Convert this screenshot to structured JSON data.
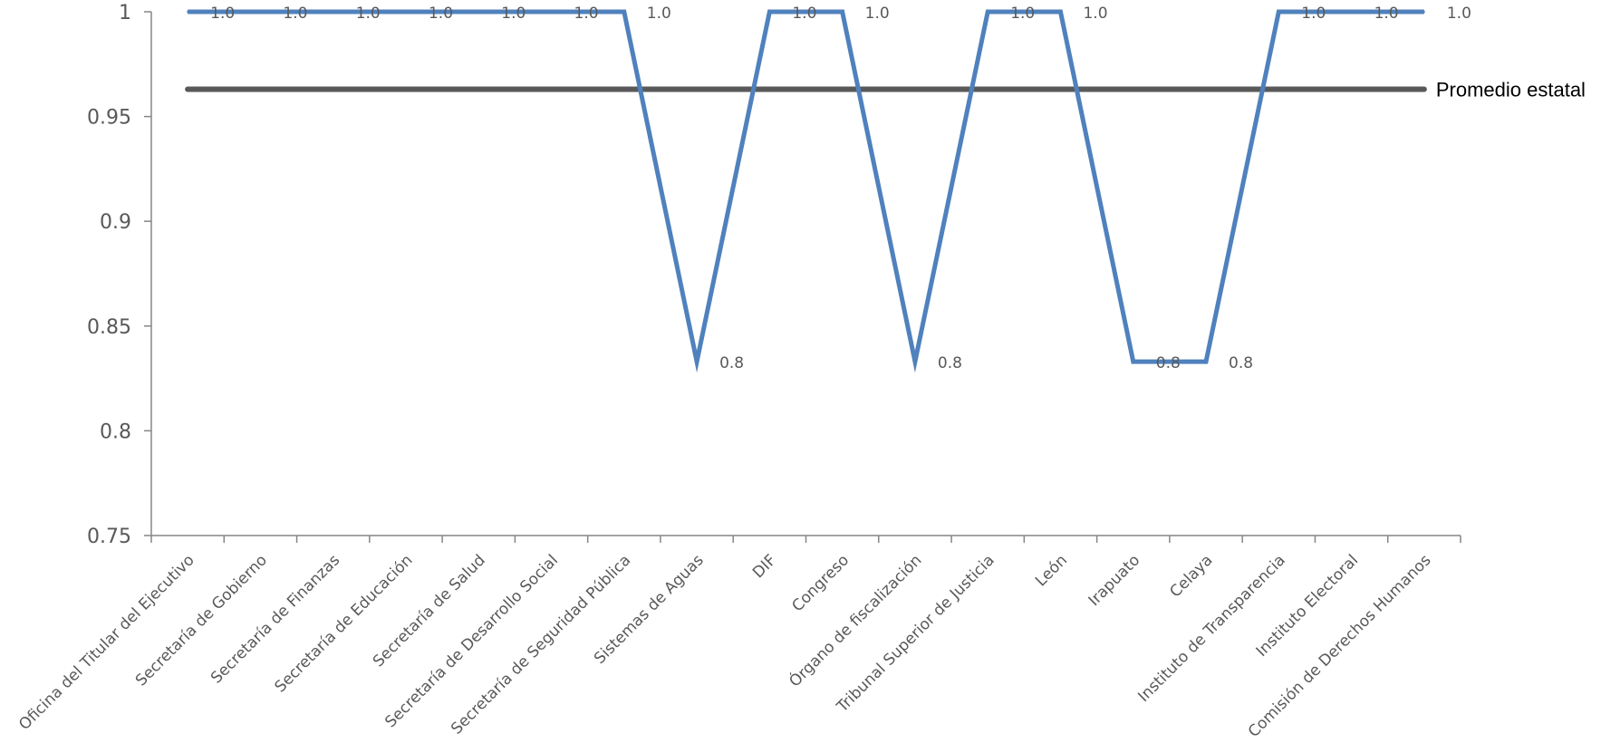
{
  "chart_data": {
    "type": "line",
    "categories": [
      "Oficina del Titular del Ejecutivo",
      "Secretaría de Gobierno",
      "Secretaría de Finanzas",
      "Secretaría de Educación",
      "Secretaría de Salud",
      "Secretaría de Desarrollo Social",
      "Secretaría de Seguridad Pública",
      "Sistemas de Aguas",
      "DIF",
      "Congreso",
      "Órgano de fiscalización",
      "Tribunal Superior de Justicia",
      "León",
      "Irapuato",
      "Celaya",
      "Instituto de Transparencia",
      "Instituto Electoral",
      "Comisión de Derechos Humanos"
    ],
    "series": [
      {
        "values": [
          1,
          1,
          1,
          1,
          1,
          1,
          1,
          0.833,
          1,
          1,
          0.833,
          1,
          1,
          0.833,
          0.833,
          1,
          1,
          1
        ],
        "data_labels": [
          "1.0",
          "1.0",
          "1.0",
          "1.0",
          "1.0",
          "1.0",
          "1.0",
          "0.8",
          "1.0",
          "1.0",
          "0.8",
          "1.0",
          "1.0",
          "0.8",
          "0.8",
          "1.0",
          "1.0",
          "1.0"
        ],
        "color": "#4F81BD"
      }
    ],
    "reference_line": {
      "name": "Promedio estatal",
      "value": 0.963,
      "color": "#595959"
    },
    "ylim": [
      0.75,
      1
    ],
    "yticks": [
      0.75,
      0.8,
      0.85,
      0.9,
      0.95,
      1
    ],
    "ytick_labels": [
      "0.75",
      "0.8",
      "0.85",
      "0.9",
      "0.95",
      "1"
    ],
    "grid": false,
    "legend": "none",
    "title": "",
    "xlabel": "",
    "ylabel": ""
  }
}
